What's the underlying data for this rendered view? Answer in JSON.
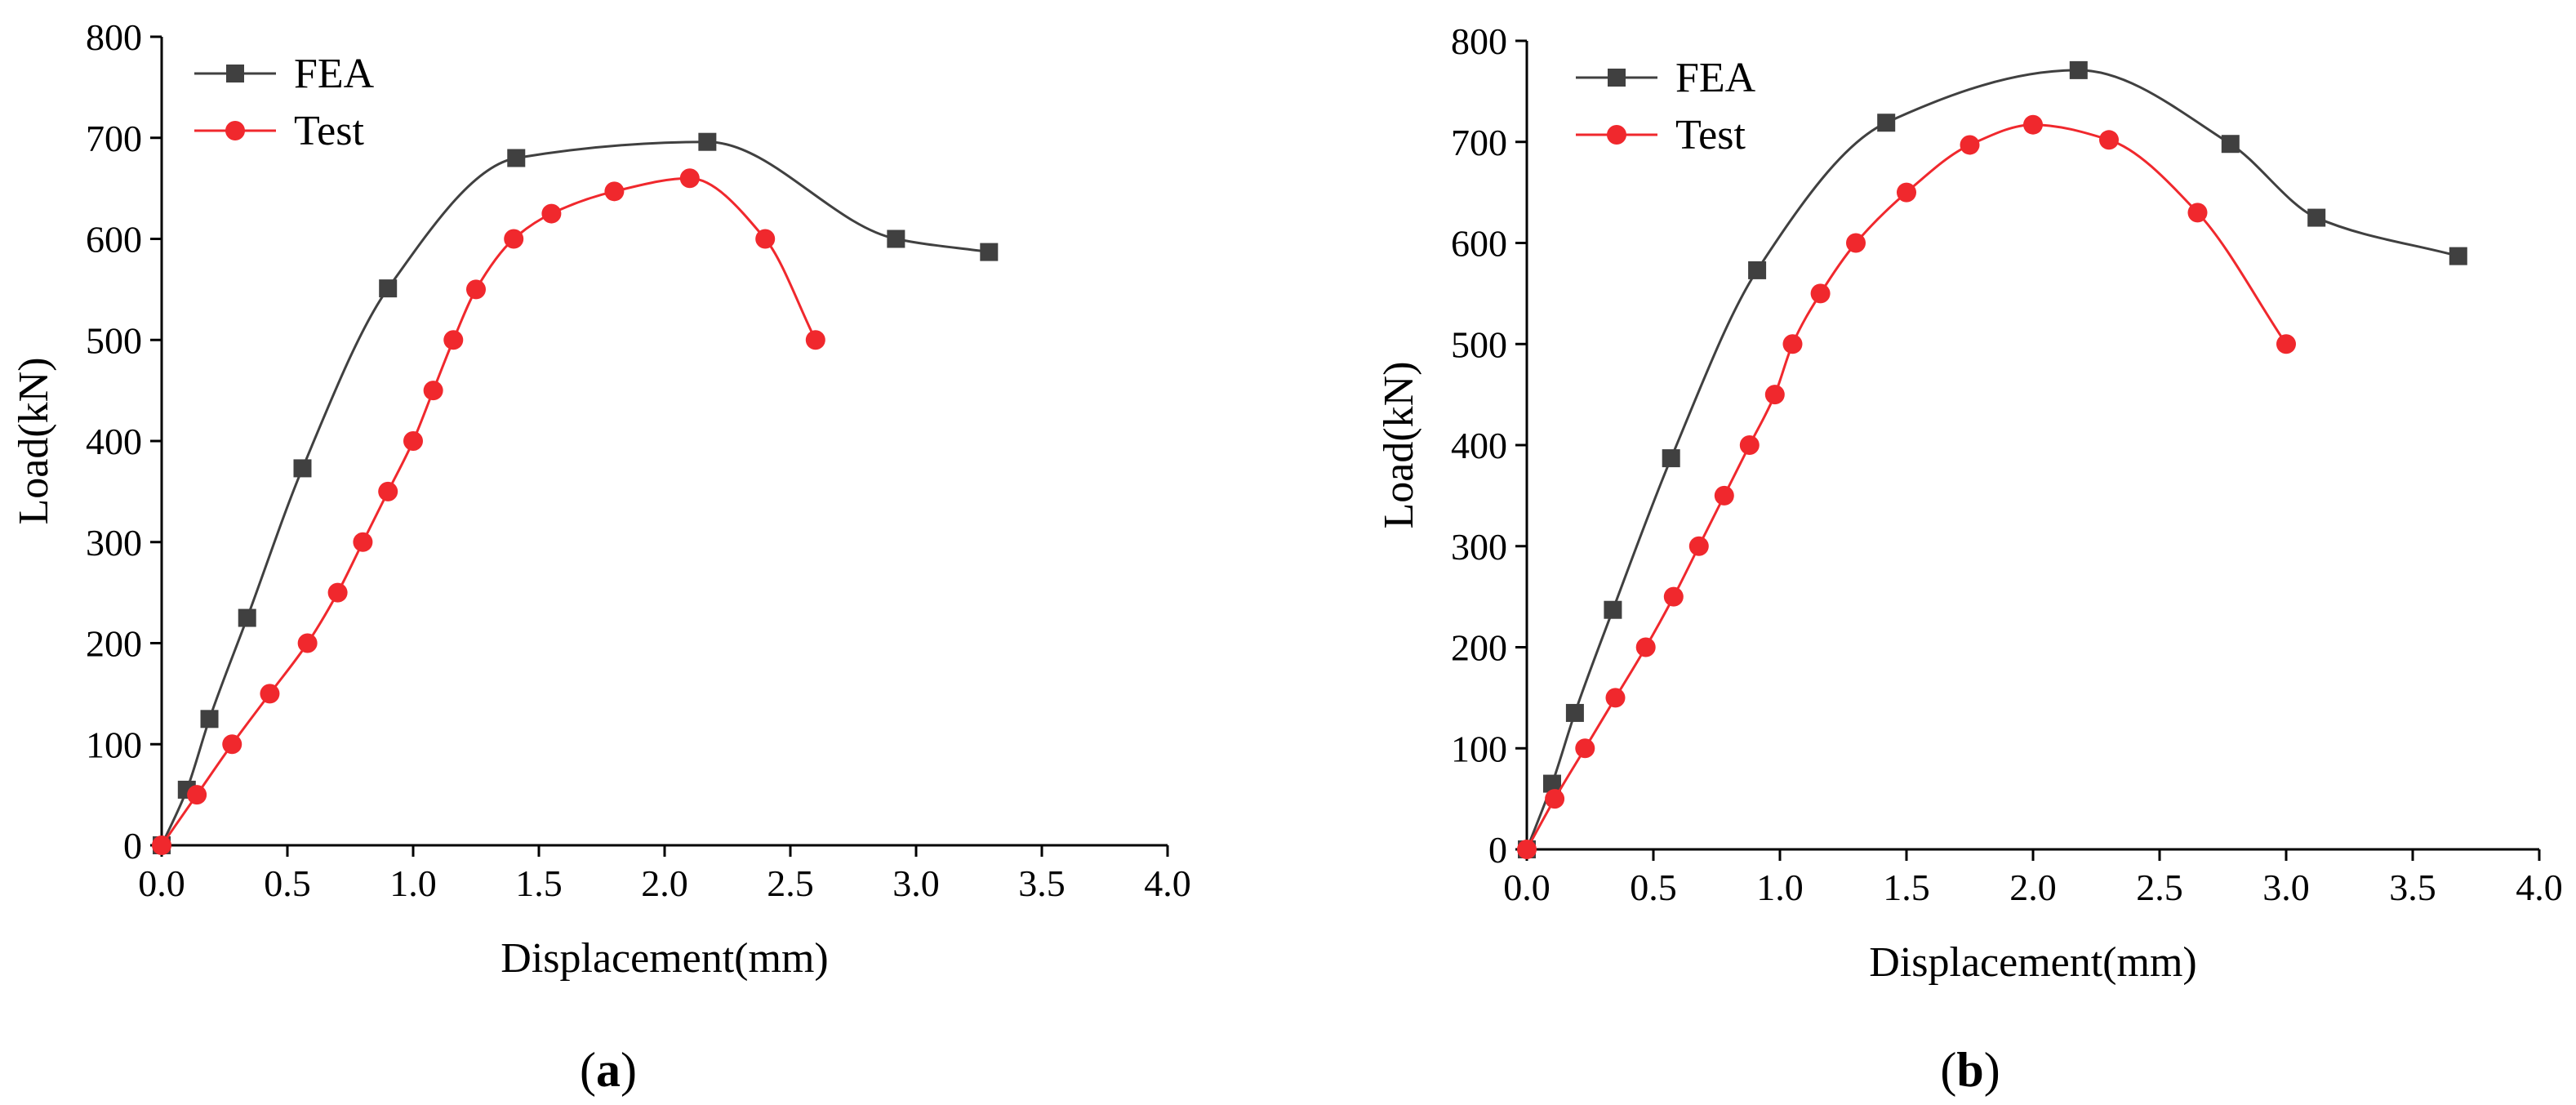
{
  "colors": {
    "fea": "#404040",
    "test": "#f0282d",
    "axis": "#000000"
  },
  "chart_data": [
    {
      "type": "line",
      "panel": "a",
      "caption": {
        "open": "(",
        "letter": "a",
        "close": ")"
      },
      "xlabel": "Displacement(mm)",
      "ylabel": "Load(kN)",
      "xlim": [
        0,
        4
      ],
      "ylim": [
        0,
        800
      ],
      "xticks": [
        "0.0",
        "0.5",
        "1.0",
        "1.5",
        "2.0",
        "2.5",
        "3.0",
        "3.5",
        "4.0"
      ],
      "yticks": [
        "0",
        "100",
        "200",
        "300",
        "400",
        "500",
        "600",
        "700",
        "800"
      ],
      "legend": "top-left",
      "series": [
        {
          "name": "FEA",
          "marker": "square",
          "x": [
            0,
            0.1,
            0.19,
            0.34,
            0.56,
            0.9,
            1.41,
            2.17,
            2.92,
            3.29
          ],
          "y": [
            0,
            55,
            125,
            225,
            373,
            551,
            680,
            696,
            600,
            587
          ]
        },
        {
          "name": "Test",
          "marker": "circle",
          "x": [
            0,
            0.14,
            0.28,
            0.43,
            0.58,
            0.7,
            0.8,
            0.9,
            1.0,
            1.08,
            1.16,
            1.25,
            1.4,
            1.55,
            1.8,
            2.1,
            2.4,
            2.6
          ],
          "y": [
            0,
            50,
            100,
            150,
            200,
            250,
            300,
            350,
            400,
            450,
            500,
            550,
            600,
            625,
            647,
            660,
            600,
            500
          ]
        }
      ]
    },
    {
      "type": "line",
      "panel": "b",
      "caption": {
        "open": "(",
        "letter": "b",
        "close": ")"
      },
      "xlabel": "Displacement(mm)",
      "ylabel": "Load(kN)",
      "xlim": [
        0,
        4
      ],
      "ylim": [
        0,
        800
      ],
      "xticks": [
        "0.0",
        "0.5",
        "1.0",
        "1.5",
        "2.0",
        "2.5",
        "3.0",
        "3.5",
        "4.0"
      ],
      "yticks": [
        "0",
        "100",
        "200",
        "300",
        "400",
        "500",
        "600",
        "700",
        "800"
      ],
      "legend": "top-left",
      "series": [
        {
          "name": "FEA",
          "marker": "square",
          "x": [
            0,
            0.1,
            0.19,
            0.34,
            0.57,
            0.91,
            1.42,
            2.18,
            2.78,
            3.12,
            3.68
          ],
          "y": [
            0,
            65,
            135,
            237,
            387,
            573,
            719,
            771,
            698,
            625,
            587
          ]
        },
        {
          "name": "Test",
          "marker": "circle",
          "x": [
            0,
            0.11,
            0.23,
            0.35,
            0.47,
            0.58,
            0.68,
            0.78,
            0.88,
            0.98,
            1.05,
            1.16,
            1.3,
            1.5,
            1.75,
            2.0,
            2.3,
            2.65,
            3.0
          ],
          "y": [
            0,
            50,
            100,
            150,
            200,
            250,
            300,
            350,
            400,
            450,
            500,
            550,
            600,
            650,
            697,
            717,
            702,
            630,
            500
          ]
        }
      ]
    }
  ]
}
